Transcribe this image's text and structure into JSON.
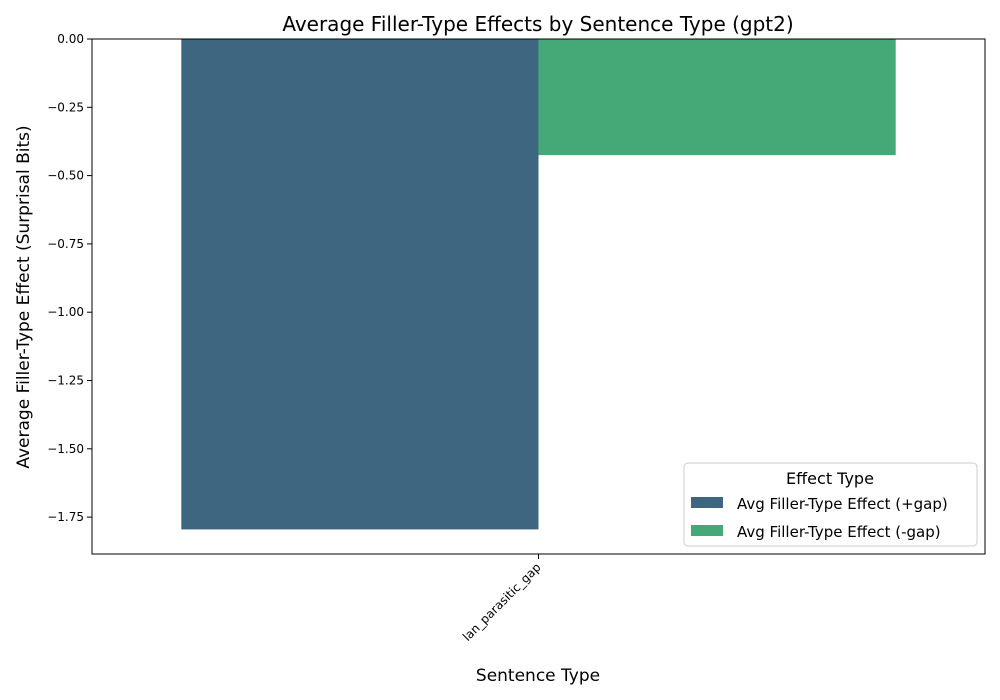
{
  "chart_data": {
    "type": "bar",
    "title": "Average Filler-Type Effects by Sentence Type (gpt2)",
    "xlabel": "Sentence Type",
    "ylabel": "Average Filler-Type Effect (Surprisal Bits)",
    "categories": [
      "lan_parasitic_gap"
    ],
    "series": [
      {
        "name": "Avg Filler-Type Effect (+gap)",
        "values": [
          -1.795
        ],
        "color": "#3e6680"
      },
      {
        "name": "Avg Filler-Type Effect (-gap)",
        "values": [
          -0.425
        ],
        "color": "#45a977"
      }
    ],
    "ylim": [
      -1.885,
      0.0
    ],
    "yticks": [
      0.0,
      -0.25,
      -0.5,
      -0.75,
      -1.0,
      -1.25,
      -1.5,
      -1.75
    ],
    "ytick_labels": [
      "0.00",
      "−0.25",
      "−0.50",
      "−0.75",
      "−1.00",
      "−1.25",
      "−1.50",
      "−1.75"
    ],
    "grid": false,
    "legend": {
      "title": "Effect Type",
      "placement": "lower-right"
    }
  }
}
